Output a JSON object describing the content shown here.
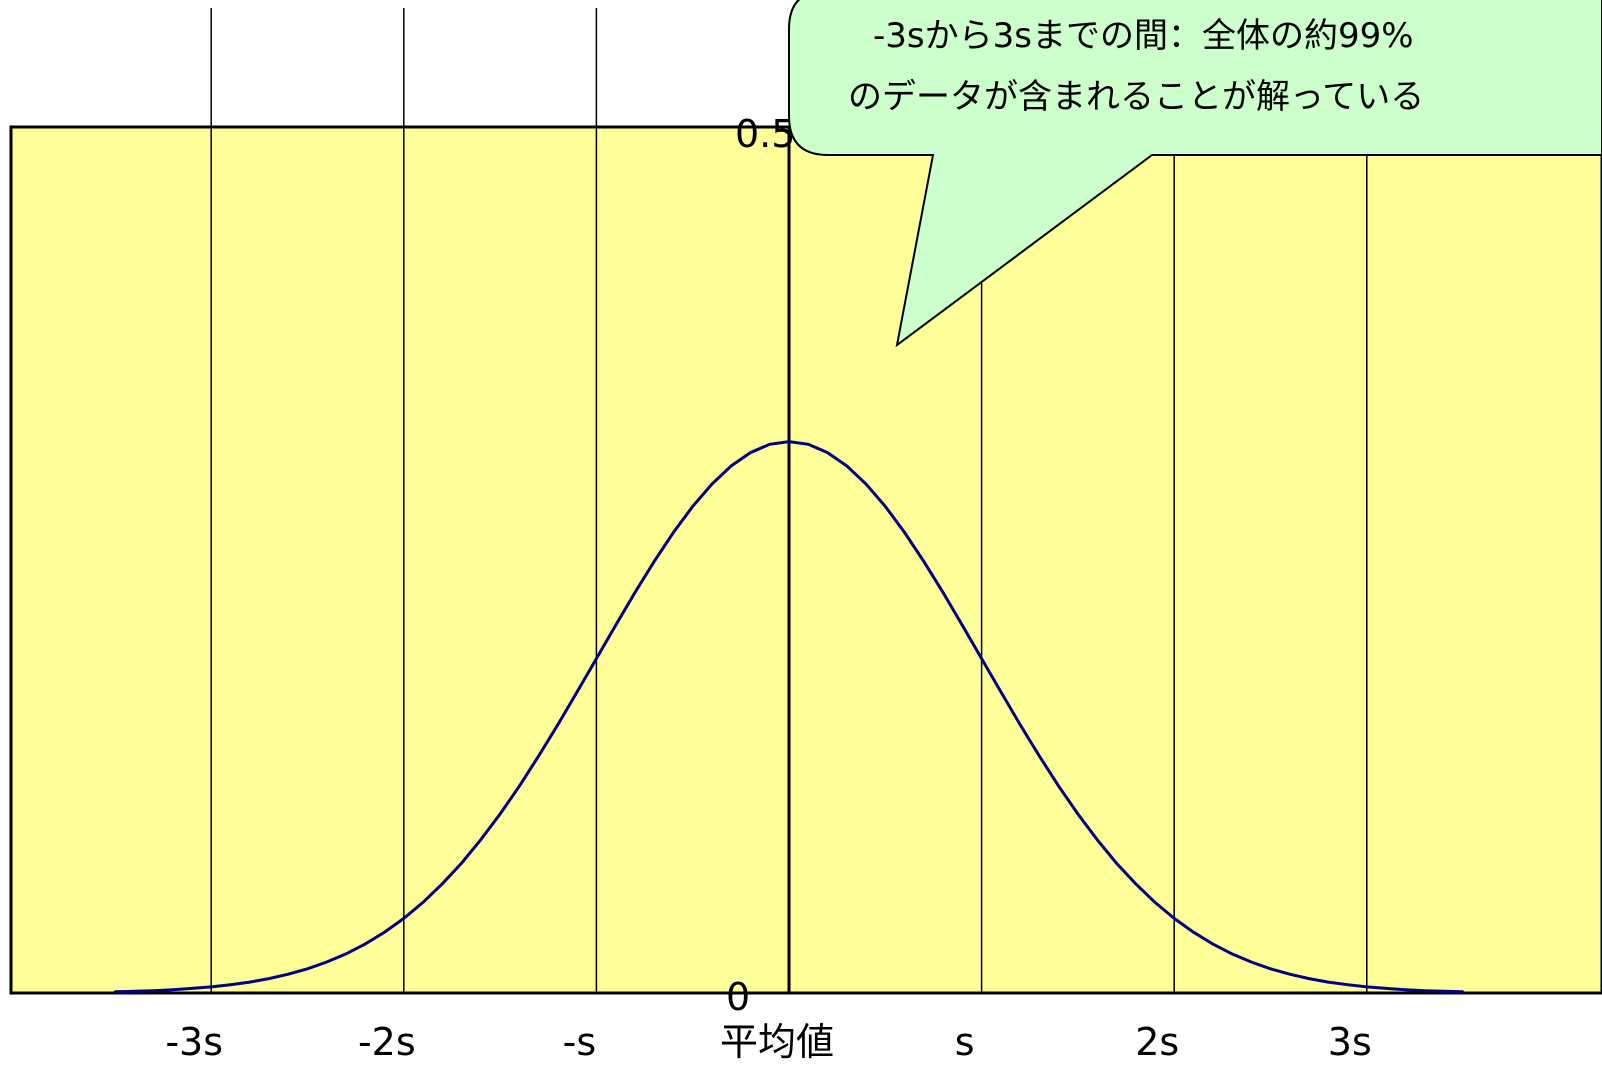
{
  "colors": {
    "plot_background": "#ffff99",
    "curve": "#000080",
    "callout_fill": "#ccffcc",
    "gridline": "#000000"
  },
  "chart_data": {
    "type": "line",
    "title": "",
    "xlabel": "",
    "ylabel": "",
    "xlim": [
      -4,
      4
    ],
    "ylim": [
      0,
      0.9
    ],
    "y_ticks": [
      {
        "value": 0.5,
        "label": "0.5"
      },
      {
        "value": 0,
        "label": "0"
      }
    ],
    "x_ticks": [
      {
        "value": -3,
        "label": "-3s"
      },
      {
        "value": -2,
        "label": "-2s"
      },
      {
        "value": -1,
        "label": "-s"
      },
      {
        "value": 0,
        "label": "平均値"
      },
      {
        "value": 1,
        "label": "s"
      },
      {
        "value": 2,
        "label": "2s"
      },
      {
        "value": 3,
        "label": "3s"
      }
    ],
    "grid": true,
    "series": [
      {
        "x": [
          -3.5,
          -3.4,
          -3.3,
          -3.2,
          -3.1,
          -3.0,
          -2.9,
          -2.8,
          -2.7,
          -2.6,
          -2.5,
          -2.4,
          -2.3,
          -2.2,
          -2.1,
          -2.0,
          -1.9,
          -1.8,
          -1.7,
          -1.6,
          -1.5,
          -1.4,
          -1.3,
          -1.2,
          -1.1,
          -1.0,
          -0.9,
          -0.8,
          -0.7,
          -0.6,
          -0.5,
          -0.4,
          -0.3,
          -0.2,
          -0.1,
          0.0,
          0.1,
          0.2,
          0.3,
          0.4,
          0.5,
          0.6,
          0.7,
          0.8,
          0.9,
          1.0,
          1.1,
          1.2,
          1.3,
          1.4,
          1.5,
          1.6,
          1.7,
          1.8,
          1.9,
          2.0,
          2.1,
          2.2,
          2.3,
          2.4,
          2.5,
          2.6,
          2.7,
          2.8,
          2.9,
          3.0,
          3.1,
          3.2,
          3.3,
          3.4,
          3.5
        ],
        "y": [
          0.0009,
          0.0012,
          0.0017,
          0.0024,
          0.0033,
          0.0044,
          0.006,
          0.0079,
          0.0104,
          0.0136,
          0.0175,
          0.0224,
          0.0283,
          0.0355,
          0.044,
          0.054,
          0.0656,
          0.079,
          0.094,
          0.1109,
          0.1295,
          0.1497,
          0.1714,
          0.1942,
          0.2179,
          0.242,
          0.2661,
          0.2897,
          0.3123,
          0.3332,
          0.3521,
          0.3683,
          0.3814,
          0.391,
          0.397,
          0.3989,
          0.397,
          0.391,
          0.3814,
          0.3683,
          0.3521,
          0.3332,
          0.3123,
          0.2897,
          0.2661,
          0.242,
          0.2179,
          0.1942,
          0.1714,
          0.1497,
          0.1295,
          0.1109,
          0.094,
          0.079,
          0.0656,
          0.054,
          0.044,
          0.0355,
          0.0283,
          0.0224,
          0.0175,
          0.0136,
          0.0104,
          0.0079,
          0.006,
          0.0044,
          0.0033,
          0.0024,
          0.0017,
          0.0012,
          0.0009
        ]
      }
    ],
    "annotations": [
      {
        "text_lines": [
          "-3sから3sまでの間：全体の約99%",
          "のデータが含まれることが解っている"
        ]
      }
    ]
  }
}
